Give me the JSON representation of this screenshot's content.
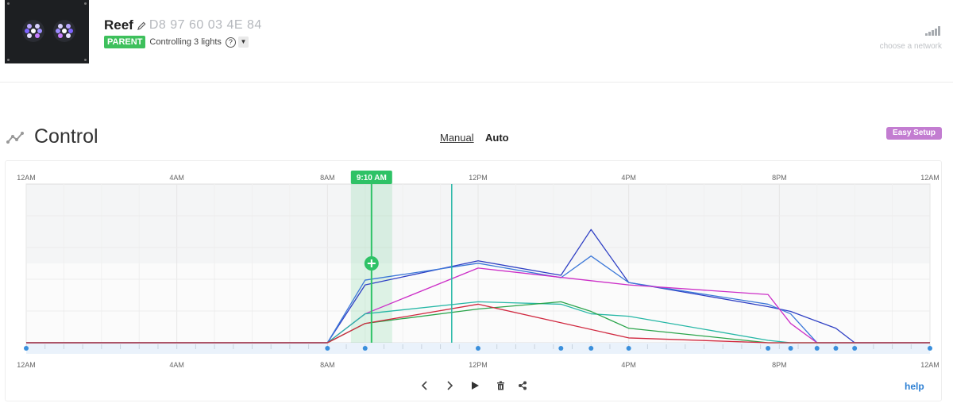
{
  "header": {
    "device_name": "Reef",
    "mac_address": "D8 97 60 03 4E 84",
    "role_badge": "PARENT",
    "controlling_text": "Controlling 3 lights",
    "help_glyph": "?",
    "dropdown_glyph": "▼",
    "network_text": "choose a network",
    "icons": [
      "pencil-icon",
      "help-circle-icon",
      "signal-bars-icon"
    ]
  },
  "control": {
    "title": "Control",
    "modes": [
      {
        "label": "Manual",
        "active": false
      },
      {
        "label": "Auto",
        "active": true
      }
    ],
    "easy_setup_label": "Easy Setup",
    "help_label": "help",
    "toolbar_icons": [
      "chevron-left-icon",
      "chevron-right-icon",
      "play-icon",
      "trash-icon",
      "share-icon"
    ]
  },
  "colors": {
    "accent_green": "#2ec266",
    "badge_green": "#3ec05c",
    "easy_setup_purple": "#c37dd1",
    "point_blue": "#3a8fdc",
    "help_blue": "#2c7fd3"
  },
  "chart_data": {
    "type": "line",
    "x_unit": "hours",
    "x_range": [
      0,
      24
    ],
    "y_range": [
      0,
      100
    ],
    "top_tick_labels": [
      "12AM",
      "4AM",
      "8AM",
      "12PM",
      "4PM",
      "8PM",
      "12AM"
    ],
    "bottom_tick_labels": [
      "12AM",
      "4AM",
      "8AM",
      "12PM",
      "4PM",
      "8PM",
      "12AM"
    ],
    "tick_hours": [
      0,
      4,
      8,
      12,
      16,
      20,
      24
    ],
    "current_time_label": "9:10 AM",
    "current_time_hour": 9.17,
    "secondary_marker_hour": 11.3,
    "control_points_hours": [
      0,
      8,
      9,
      12,
      14.2,
      15,
      16,
      19.7,
      20.3,
      21,
      21.5,
      22,
      24
    ],
    "series": [
      {
        "color": "#2e3fc4",
        "points": [
          [
            0,
            0
          ],
          [
            8,
            0
          ],
          [
            9,
            24
          ],
          [
            12,
            34
          ],
          [
            14.2,
            28
          ],
          [
            15,
            47
          ],
          [
            16,
            25
          ],
          [
            19.7,
            15
          ],
          [
            20.3,
            13
          ],
          [
            21.5,
            6
          ],
          [
            22,
            0
          ],
          [
            24,
            0
          ]
        ]
      },
      {
        "color": "#3c78d8",
        "points": [
          [
            0,
            0
          ],
          [
            8,
            0
          ],
          [
            9,
            26
          ],
          [
            12,
            33
          ],
          [
            14.2,
            27
          ],
          [
            15,
            36
          ],
          [
            16,
            25
          ],
          [
            19.7,
            16
          ],
          [
            20.3,
            12
          ],
          [
            21,
            0
          ],
          [
            24,
            0
          ]
        ]
      },
      {
        "color": "#cc2ec7",
        "points": [
          [
            0,
            0
          ],
          [
            8,
            0
          ],
          [
            9,
            12
          ],
          [
            12,
            31
          ],
          [
            16,
            24
          ],
          [
            19.7,
            20
          ],
          [
            20.3,
            8
          ],
          [
            21,
            0
          ],
          [
            24,
            0
          ]
        ]
      },
      {
        "color": "#26b7a6",
        "points": [
          [
            0,
            0
          ],
          [
            8,
            0
          ],
          [
            9,
            12
          ],
          [
            12,
            17
          ],
          [
            14.2,
            16
          ],
          [
            15,
            12
          ],
          [
            16,
            11
          ],
          [
            19.7,
            1
          ],
          [
            20.3,
            0
          ],
          [
            24,
            0
          ]
        ]
      },
      {
        "color": "#2aa44a",
        "points": [
          [
            0,
            0
          ],
          [
            8,
            0
          ],
          [
            9,
            8
          ],
          [
            12,
            14
          ],
          [
            14.2,
            17
          ],
          [
            15,
            13
          ],
          [
            16,
            6
          ],
          [
            19.7,
            0
          ],
          [
            24,
            0
          ]
        ]
      },
      {
        "color": "#d0283f",
        "points": [
          [
            0,
            0
          ],
          [
            8,
            0
          ],
          [
            9,
            8
          ],
          [
            12,
            16
          ],
          [
            16,
            2
          ],
          [
            19.7,
            0
          ],
          [
            24,
            0
          ]
        ]
      }
    ]
  }
}
